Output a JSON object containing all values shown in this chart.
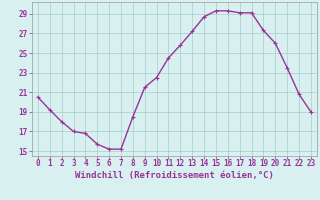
{
  "x": [
    0,
    1,
    2,
    3,
    4,
    5,
    6,
    7,
    8,
    9,
    10,
    11,
    12,
    13,
    14,
    15,
    16,
    17,
    18,
    19,
    20,
    21,
    22,
    23
  ],
  "y": [
    20.5,
    19.2,
    18.0,
    17.0,
    16.8,
    15.7,
    15.2,
    15.2,
    18.5,
    21.5,
    22.5,
    24.5,
    25.8,
    27.2,
    28.7,
    29.3,
    29.3,
    29.1,
    29.1,
    27.3,
    26.0,
    23.5,
    20.8,
    19.0
  ],
  "line_color": "#993399",
  "marker": "+",
  "bg_color": "#d8f0f0",
  "grid_color": "#aacccc",
  "xlabel": "Windchill (Refroidissement éolien,°C)",
  "xlim": [
    -0.5,
    23.5
  ],
  "ylim": [
    14.5,
    30.2
  ],
  "yticks": [
    15,
    17,
    19,
    21,
    23,
    25,
    27,
    29
  ],
  "xticks": [
    0,
    1,
    2,
    3,
    4,
    5,
    6,
    7,
    8,
    9,
    10,
    11,
    12,
    13,
    14,
    15,
    16,
    17,
    18,
    19,
    20,
    21,
    22,
    23
  ],
  "tick_fontsize": 5.5,
  "xlabel_fontsize": 6.5,
  "line_width": 1.0,
  "marker_size": 3.5
}
